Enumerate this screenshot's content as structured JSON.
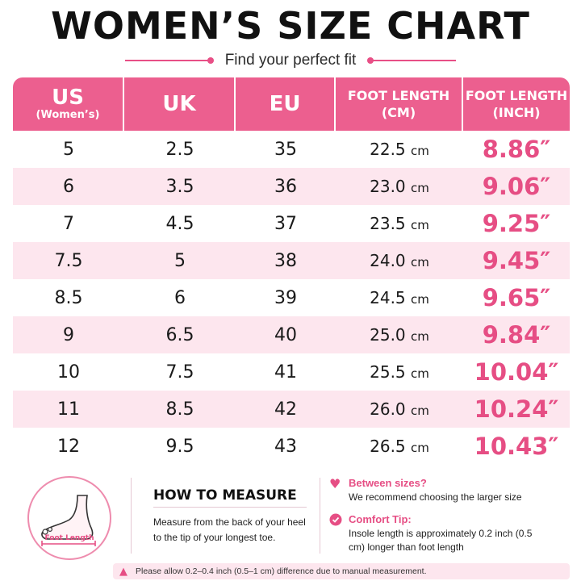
{
  "title": "WOMEN’S SIZE CHART",
  "subtitle": "Find your perfect fit",
  "colors": {
    "accent": "#e64e84",
    "header_bg": "#ec5f8f",
    "alt_row": "#fde6ee"
  },
  "table": {
    "headers": [
      {
        "main": "US",
        "sub": "(Women’s)"
      },
      {
        "main": "UK",
        "sub": ""
      },
      {
        "main": "EU",
        "sub": ""
      },
      {
        "main": "FOOT LENGTH",
        "sub": "(CM)"
      },
      {
        "main": "FOOT LENGTH",
        "sub": "(INCH)"
      }
    ],
    "rows": [
      {
        "us": "5",
        "uk": "2.5",
        "eu": "35",
        "cm": "22.5",
        "cm_unit": "cm",
        "inch": "8.86″"
      },
      {
        "us": "6",
        "uk": "3.5",
        "eu": "36",
        "cm": "23.0",
        "cm_unit": "cm",
        "inch": "9.06″"
      },
      {
        "us": "7",
        "uk": "4.5",
        "eu": "37",
        "cm": "23.5",
        "cm_unit": "cm",
        "inch": "9.25″"
      },
      {
        "us": "7.5",
        "uk": "5",
        "eu": "38",
        "cm": "24.0",
        "cm_unit": "cm",
        "inch": "9.45″"
      },
      {
        "us": "8.5",
        "uk": "6",
        "eu": "39",
        "cm": "24.5",
        "cm_unit": "cm",
        "inch": "9.65″"
      },
      {
        "us": "9",
        "uk": "6.5",
        "eu": "40",
        "cm": "25.0",
        "cm_unit": "cm",
        "inch": "9.84″"
      },
      {
        "us": "10",
        "uk": "7.5",
        "eu": "41",
        "cm": "25.5",
        "cm_unit": "cm",
        "inch": "10.04″"
      },
      {
        "us": "11",
        "uk": "8.5",
        "eu": "42",
        "cm": "26.0",
        "cm_unit": "cm",
        "inch": "10.24″"
      },
      {
        "us": "12",
        "uk": "9.5",
        "eu": "43",
        "cm": "26.5",
        "cm_unit": "cm",
        "inch": "10.43″"
      }
    ]
  },
  "measure": {
    "foot_label": "Foot Length",
    "title": "HOW TO MEASURE",
    "text": "Measure from the back of your heel to the tip of your longest toe."
  },
  "tips": {
    "between": {
      "icon": "heart-icon",
      "title": "Between sizes?",
      "text": "We recommend choosing the larger size"
    },
    "comfort": {
      "icon": "check-icon",
      "title": "Comfort Tip:",
      "text": "Insole length is approximately 0.2 inch (0.5 cm) longer than foot length"
    }
  },
  "footer": {
    "icon": "warning-icon",
    "text": "Please allow 0.2–0.4 inch (0.5–1 cm) difference due to manual measurement."
  }
}
